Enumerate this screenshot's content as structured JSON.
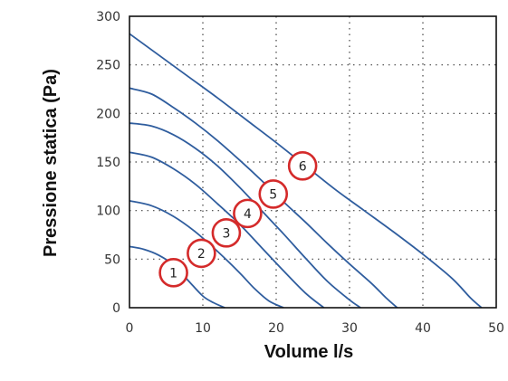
{
  "chart_data": {
    "type": "line",
    "xlabel": "Volume l/s",
    "ylabel": "Pressione statica (Pa)",
    "xlim": [
      0,
      50
    ],
    "ylim": [
      0,
      300
    ],
    "xticks": [
      "0",
      "10",
      "20",
      "30",
      "40",
      "50"
    ],
    "yticks": [
      "0",
      "50",
      "100",
      "150",
      "200",
      "250",
      "300"
    ],
    "grid": "dotted",
    "colors": {
      "line": "#2f5d9e",
      "marker": "#d42a2a",
      "axis": "#111111",
      "grid": "#444444"
    },
    "series": [
      {
        "x": [
          0,
          2,
          4,
          6,
          8,
          10,
          11.5,
          13
        ],
        "y": [
          63,
          60,
          54,
          44,
          28,
          12,
          5,
          0
        ]
      },
      {
        "x": [
          0,
          3,
          6,
          9,
          12,
          15,
          17,
          19,
          21
        ],
        "y": [
          110,
          105,
          94,
          78,
          58,
          36,
          20,
          7,
          0
        ]
      },
      {
        "x": [
          0,
          3,
          6,
          9,
          12,
          15,
          18,
          21,
          24,
          26.5
        ],
        "y": [
          160,
          155,
          143,
          127,
          107,
          86,
          62,
          38,
          15,
          0
        ]
      },
      {
        "x": [
          0,
          3,
          6,
          9,
          12,
          15,
          18,
          21,
          24,
          27,
          30,
          31.5
        ],
        "y": [
          190,
          187,
          178,
          164,
          146,
          124,
          100,
          76,
          51,
          27,
          8,
          0
        ]
      },
      {
        "x": [
          0,
          3,
          6,
          9,
          12,
          15,
          18,
          21,
          24,
          27,
          30,
          33,
          35,
          36.5
        ],
        "y": [
          226,
          220,
          206,
          190,
          172,
          152,
          131,
          109,
          88,
          66,
          45,
          25,
          10,
          0
        ]
      },
      {
        "x": [
          0,
          4,
          8,
          12,
          16,
          20,
          24,
          28,
          32,
          36,
          40,
          44,
          46.5,
          48
        ],
        "y": [
          282,
          260,
          238,
          216,
          193,
          170,
          146,
          122,
          100,
          78,
          55,
          30,
          10,
          0
        ]
      }
    ],
    "markers": [
      {
        "label": "1",
        "x": 6,
        "y": 36
      },
      {
        "label": "2",
        "x": 9.8,
        "y": 56
      },
      {
        "label": "3",
        "x": 13.2,
        "y": 77
      },
      {
        "label": "4",
        "x": 16.1,
        "y": 97
      },
      {
        "label": "5",
        "x": 19.6,
        "y": 117
      },
      {
        "label": "6",
        "x": 23.6,
        "y": 146
      }
    ]
  }
}
